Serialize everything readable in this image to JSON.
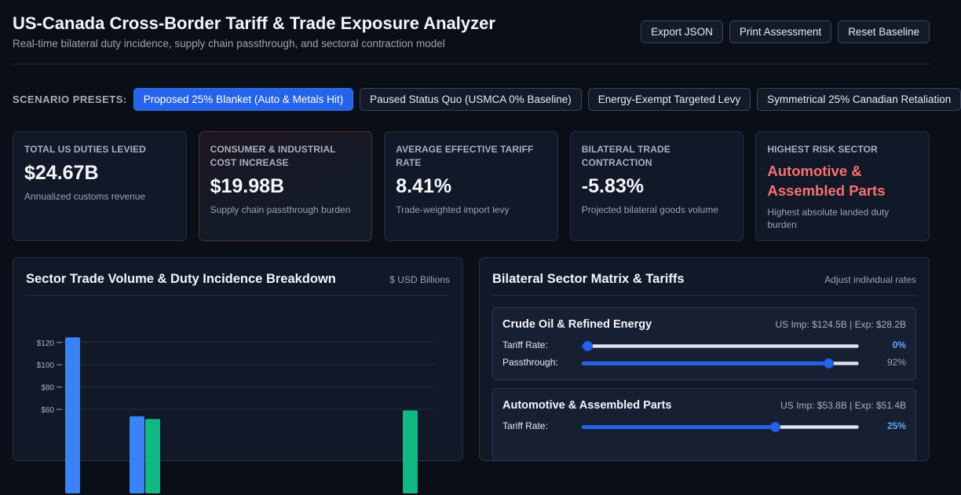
{
  "header": {
    "title": "US-Canada Cross-Border Tariff & Trade Exposure Analyzer",
    "subtitle": "Real-time bilateral duty incidence, supply chain passthrough, and sectoral contraction model",
    "buttons": [
      "Export JSON",
      "Print Assessment",
      "Reset Baseline"
    ]
  },
  "presets": {
    "label": "SCENARIO PRESETS:",
    "items": [
      {
        "label": "Proposed 25% Blanket (Auto & Metals Hit)",
        "active": true
      },
      {
        "label": "Paused Status Quo (USMCA 0% Baseline)",
        "active": false
      },
      {
        "label": "Energy-Exempt Targeted Levy",
        "active": false
      },
      {
        "label": "Symmetrical 25% Canadian Retaliation",
        "active": false
      }
    ]
  },
  "kpis": [
    {
      "label": "TOTAL US DUTIES LEVIED",
      "value": "$24.67B",
      "sub": "Annualized customs revenue"
    },
    {
      "label": "CONSUMER & INDUSTRIAL COST INCREASE",
      "value": "$19.98B",
      "sub": "Supply chain passthrough burden"
    },
    {
      "label": "AVERAGE EFFECTIVE TARIFF RATE",
      "value": "8.41%",
      "sub": "Trade-weighted import levy"
    },
    {
      "label": "BILATERAL TRADE CONTRACTION",
      "value": "-5.83%",
      "sub": "Projected bilateral goods volume"
    },
    {
      "label": "HIGHEST RISK SECTOR",
      "value": "Automotive & Assembled Parts",
      "sub": "Highest absolute landed duty burden"
    }
  ],
  "chart_panel": {
    "title": "Sector Trade Volume & Duty Incidence Breakdown",
    "note": "$ USD Billions"
  },
  "chart_data": {
    "type": "bar",
    "yticks": [
      "$60",
      "$80",
      "$100",
      "$120"
    ],
    "ylim": [
      0,
      125
    ],
    "grid": true,
    "series": [
      {
        "values": [
          124.5,
          null,
          53.8,
          null,
          null,
          null,
          null,
          null,
          null,
          null,
          null
        ]
      },
      {
        "values": [
          null,
          null,
          51.4,
          null,
          null,
          null,
          null,
          null,
          null,
          null,
          59.0
        ]
      }
    ],
    "colors": [
      "#3b82f6",
      "#10b981"
    ]
  },
  "matrix_panel": {
    "title": "Bilateral Sector Matrix & Tariffs",
    "note": "Adjust individual rates"
  },
  "sectors": [
    {
      "name": "Crude Oil & Refined Energy",
      "trade": "US Imp: $124.5B | Exp: $28.2B",
      "tariff_label": "Tariff Rate:",
      "tariff_value": "0%",
      "tariff_level": 0,
      "pass_label": "Passthrough:",
      "pass_value": "92%",
      "pass_level": 0.9
    },
    {
      "name": "Automotive & Assembled Parts",
      "trade": "US Imp: $53.8B | Exp: $51.4B",
      "tariff_label": "Tariff Rate:",
      "tariff_value": "25%",
      "tariff_level": 0.7
    }
  ],
  "colors": {
    "accent": "#2563eb",
    "risk": "#f87171",
    "import_bar": "#3b82f6",
    "export_bar": "#10b981"
  }
}
